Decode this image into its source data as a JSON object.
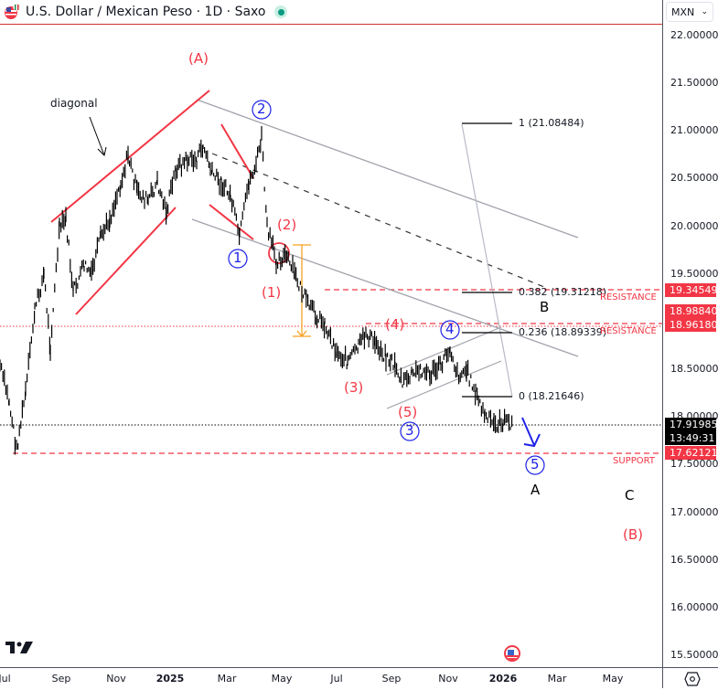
{
  "header": {
    "title": "U.S. Dollar / Mexican Peso · 1D · Saxo",
    "currency": "MXN",
    "currency_chevron": "⌄"
  },
  "price_axis": {
    "ticks": [
      "22.00000",
      "21.50000",
      "21.00000",
      "20.50000",
      "20.00000",
      "19.50000",
      "18.50000",
      "18.00000",
      "17.50000",
      "17.00000",
      "16.50000",
      "16.00000",
      "15.50000"
    ],
    "tags": {
      "resistance_1": "19.34549",
      "level_2": "18.98840",
      "resistance_2": "18.96180",
      "last_price": "17.91985",
      "countdown": "13:49:31",
      "support": "17.62121"
    }
  },
  "time_axis": {
    "ticks": [
      "Jul",
      "Sep",
      "Nov",
      "2025",
      "Mar",
      "May",
      "Jul",
      "Sep",
      "Nov",
      "2026",
      "Mar",
      "May"
    ]
  },
  "annotations": {
    "diagonal": "diagonal",
    "wave_A_paren": "(A)",
    "wave_B_paren": "(B)",
    "wave_1_paren": "(1)",
    "wave_2_paren": "(2)",
    "wave_3_paren": "(3)",
    "wave_4_paren": "(4)",
    "wave_5_paren": "(5)",
    "wave_1_circle": "1",
    "wave_2_circle": "2",
    "wave_3_circle": "3",
    "wave_4_circle": "4",
    "wave_5_circle": "5",
    "wave_A": "A",
    "wave_B": "B",
    "wave_C": "C",
    "resistance_1": "RESISTANCE",
    "resistance_2": "RESISTANCE",
    "support": "SUPPORT",
    "fib_1": "1 (21.08484)",
    "fib_0382": "0.382 (19.31218)",
    "fib_0236": "0.236 (18.89339)",
    "fib_0": "0 (18.21646)"
  },
  "colors": {
    "red": "#f23645",
    "blue": "#1e22e6",
    "orange": "#f7a021",
    "grey_line": "#a0a3ab",
    "candle": "#000000"
  },
  "chart_data": {
    "type": "line",
    "title": "U.S. Dollar / Mexican Peso · 1D · Saxo",
    "xlabel": "",
    "ylabel": "MXN",
    "ylim": [
      15.5,
      22.0
    ],
    "x": [
      "2024-07",
      "2024-08",
      "2024-09",
      "2024-10",
      "2024-11",
      "2024-12",
      "2025-01",
      "2025-02",
      "2025-03",
      "2025-04",
      "2025-05",
      "2025-06",
      "2025-07",
      "2025-08",
      "2025-09",
      "2025-10",
      "2025-11",
      "2025-12",
      "2026-01"
    ],
    "series": [
      {
        "name": "USD/MXN close (approx)",
        "values": [
          18.2,
          17.7,
          19.6,
          19.8,
          20.4,
          20.2,
          20.6,
          20.4,
          20.2,
          20.3,
          19.5,
          19.1,
          18.7,
          18.7,
          18.5,
          18.4,
          18.4,
          18.1,
          17.92
        ]
      }
    ],
    "levels": {
      "resistance_1": 19.34549,
      "resistance_2": 18.9618,
      "level": 18.9884,
      "support": 17.62121,
      "last": 17.91985
    },
    "fibonacci": [
      {
        "ratio": "1",
        "value": 21.08484
      },
      {
        "ratio": "0.382",
        "value": 19.31218
      },
      {
        "ratio": "0.236",
        "value": 18.89339
      },
      {
        "ratio": "0",
        "value": 18.21646
      }
    ]
  }
}
